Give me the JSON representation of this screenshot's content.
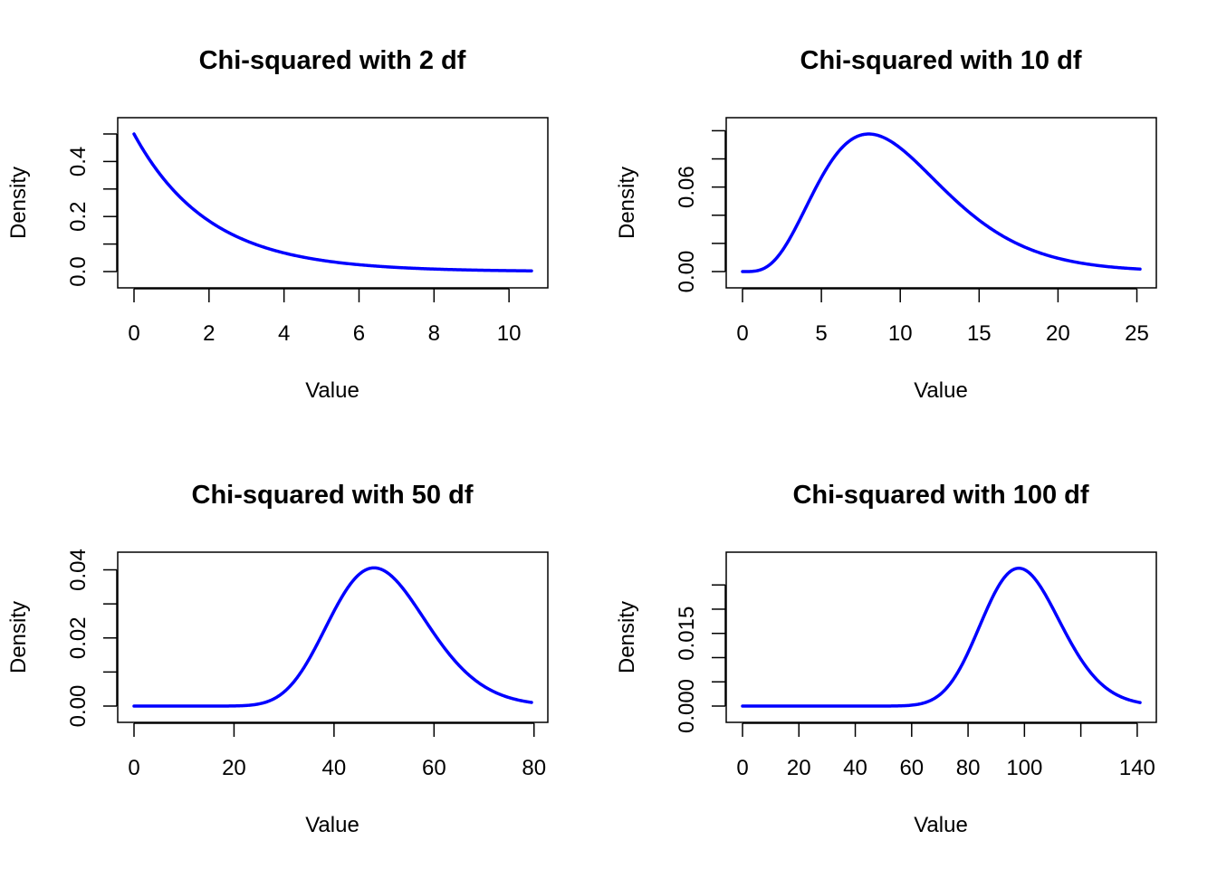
{
  "chart_data": [
    {
      "type": "line",
      "title": "Chi-squared with 2 df",
      "xlabel": "Value",
      "ylabel": "Density",
      "df": 2,
      "x_range": [
        0,
        10.6
      ],
      "xlim": [
        0,
        10.6
      ],
      "ylim": [
        0,
        0.5
      ],
      "x_ticks": [
        0,
        2,
        4,
        6,
        8,
        10
      ],
      "x_tick_labels": [
        "0",
        "2",
        "4",
        "6",
        "8",
        "10"
      ],
      "y_ticks": [
        0,
        0.1,
        0.2,
        0.3,
        0.4,
        0.5
      ],
      "y_tick_labels": [
        "0.0",
        "",
        "0.2",
        "",
        "0.4",
        ""
      ],
      "grid": false,
      "series_color": "#0000ff"
    },
    {
      "type": "line",
      "title": "Chi-squared with 10 df",
      "xlabel": "Value",
      "ylabel": "Density",
      "df": 10,
      "x_range": [
        0,
        25.2
      ],
      "xlim": [
        0,
        25.2
      ],
      "ylim": [
        0,
        0.0977
      ],
      "x_ticks": [
        0,
        5,
        10,
        15,
        20,
        25
      ],
      "x_tick_labels": [
        "0",
        "5",
        "10",
        "15",
        "20",
        "25"
      ],
      "y_ticks": [
        0,
        0.02,
        0.04,
        0.06,
        0.08,
        0.1
      ],
      "y_tick_labels": [
        "0.00",
        "",
        "",
        "0.06",
        "",
        ""
      ],
      "grid": false,
      "series_color": "#0000ff"
    },
    {
      "type": "line",
      "title": "Chi-squared with 50 df",
      "xlabel": "Value",
      "ylabel": "Density",
      "df": 50,
      "x_range": [
        0,
        79.5
      ],
      "xlim": [
        0,
        79.5
      ],
      "ylim": [
        0,
        0.0404
      ],
      "x_ticks": [
        0,
        20,
        40,
        60,
        80
      ],
      "x_tick_labels": [
        "0",
        "20",
        "40",
        "60",
        "80"
      ],
      "y_ticks": [
        0,
        0.01,
        0.02,
        0.03,
        0.04
      ],
      "y_tick_labels": [
        "0.00",
        "",
        "0.02",
        "",
        "0.04"
      ],
      "grid": false,
      "series_color": "#0000ff"
    },
    {
      "type": "line",
      "title": "Chi-squared with 100 df",
      "xlabel": "Value",
      "ylabel": "Density",
      "df": 100,
      "x_range": [
        0,
        141
      ],
      "xlim": [
        0,
        141
      ],
      "ylim": [
        0,
        0.0284
      ],
      "x_ticks": [
        0,
        20,
        40,
        60,
        80,
        100,
        120,
        140
      ],
      "x_tick_labels": [
        "0",
        "20",
        "40",
        "60",
        "80",
        "100",
        "",
        "140"
      ],
      "y_ticks": [
        0,
        0.005,
        0.01,
        0.015,
        0.02,
        0.025
      ],
      "y_tick_labels": [
        "0.000",
        "",
        "",
        "0.015",
        "",
        ""
      ],
      "grid": false,
      "series_color": "#0000ff"
    }
  ]
}
